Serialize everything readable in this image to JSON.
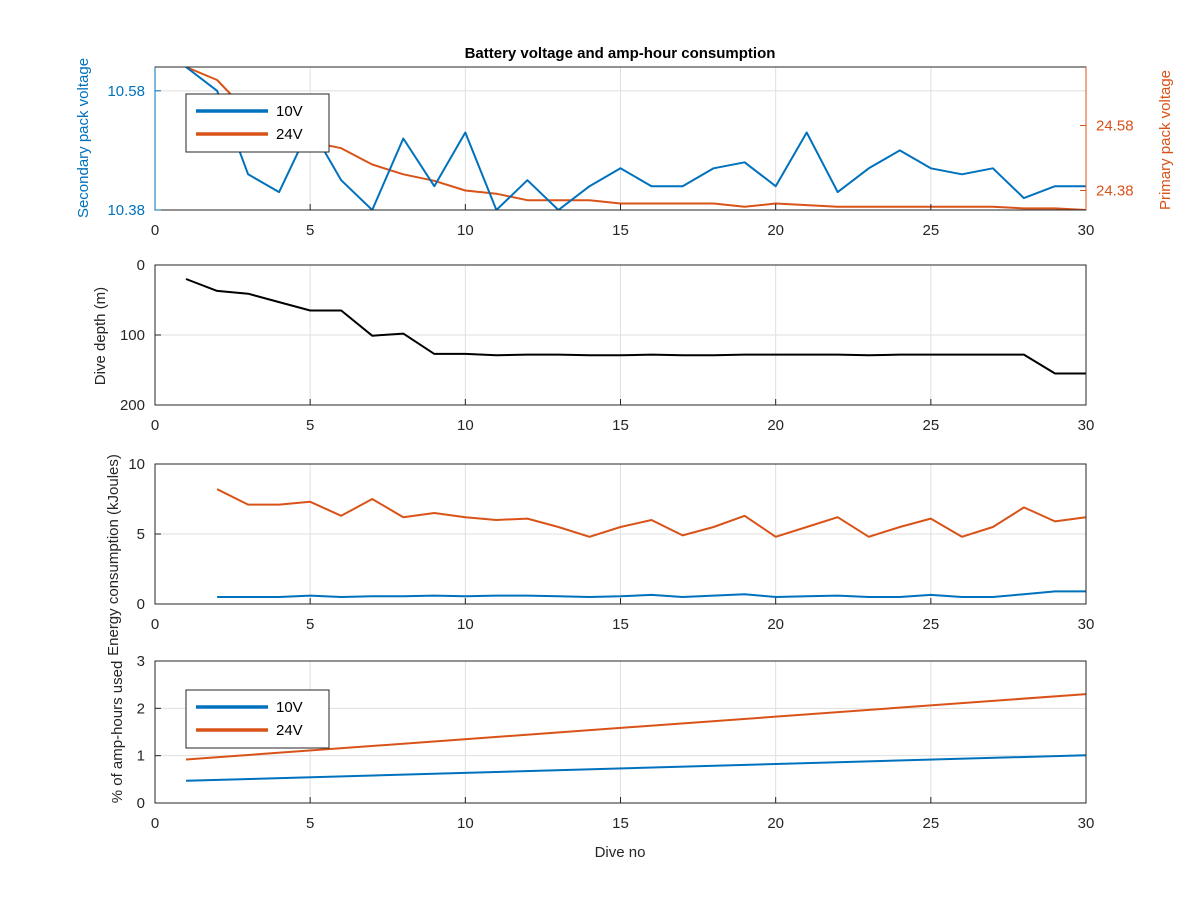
{
  "colors": {
    "blue": "#0072BD",
    "orange": "#D95319",
    "black": "#000000",
    "grid": "#DFDFDF",
    "axis": "#262626"
  },
  "chart_data": [
    {
      "id": "voltage",
      "type": "line",
      "title": "Battery voltage and amp-hour consumption",
      "xlim": [
        0,
        30
      ],
      "xticks": [
        0,
        5,
        10,
        15,
        20,
        25,
        30
      ],
      "grid": true,
      "legend": {
        "placement": "top-left",
        "entries": [
          "10V",
          "24V"
        ]
      },
      "left_axis": {
        "label": "Secondary pack voltage",
        "ylim": [
          10.38,
          10.62
        ],
        "ticks": [
          10.38,
          10.58
        ],
        "tick_labels": [
          "10.38",
          "10.58"
        ]
      },
      "right_axis": {
        "label": "Primary pack voltage",
        "ylim": [
          24.32,
          24.76
        ],
        "ticks": [
          24.38,
          24.58
        ],
        "tick_labels": [
          "24.38",
          "24.58"
        ]
      },
      "series": [
        {
          "name": "10V",
          "axis": "left",
          "x": [
            1,
            2,
            3,
            4,
            5,
            6,
            7,
            8,
            9,
            10,
            11,
            12,
            13,
            14,
            15,
            16,
            17,
            18,
            19,
            20,
            21,
            22,
            23,
            24,
            25,
            26,
            27,
            28,
            29,
            30
          ],
          "y": [
            10.62,
            10.58,
            10.44,
            10.41,
            10.52,
            10.43,
            10.38,
            10.5,
            10.42,
            10.51,
            10.38,
            10.43,
            10.38,
            10.42,
            10.45,
            10.42,
            10.42,
            10.45,
            10.46,
            10.42,
            10.51,
            10.41,
            10.45,
            10.48,
            10.45,
            10.44,
            10.45,
            10.4,
            10.42,
            10.42
          ]
        },
        {
          "name": "24V",
          "axis": "right",
          "x": [
            1,
            2,
            3,
            4,
            5,
            6,
            7,
            8,
            9,
            10,
            11,
            12,
            13,
            14,
            15,
            16,
            17,
            18,
            19,
            20,
            21,
            22,
            23,
            24,
            25,
            26,
            27,
            28,
            29,
            30
          ],
          "y": [
            24.76,
            24.72,
            24.62,
            24.56,
            24.53,
            24.51,
            24.46,
            24.43,
            24.41,
            24.38,
            24.37,
            24.35,
            24.35,
            24.35,
            24.34,
            24.34,
            24.34,
            24.34,
            24.33,
            24.34,
            24.335,
            24.33,
            24.33,
            24.33,
            24.33,
            24.33,
            24.33,
            24.325,
            24.325,
            24.32
          ]
        }
      ]
    },
    {
      "id": "depth",
      "type": "line",
      "ylabel": "Dive depth (m)",
      "xlim": [
        0,
        30
      ],
      "ylim": [
        0,
        200
      ],
      "y_reversed": true,
      "xticks": [
        0,
        5,
        10,
        15,
        20,
        25,
        30
      ],
      "yticks": [
        0,
        100,
        200
      ],
      "tick_labels_y": [
        "0",
        "100",
        "200"
      ],
      "grid": true,
      "series": [
        {
          "x": [
            1,
            2,
            3,
            4,
            5,
            6,
            7,
            8,
            9,
            10,
            11,
            12,
            13,
            14,
            15,
            16,
            17,
            18,
            19,
            20,
            21,
            22,
            23,
            24,
            25,
            26,
            27,
            28,
            29,
            30
          ],
          "y": [
            20,
            37,
            41,
            53,
            65,
            65,
            101,
            98,
            127,
            127,
            129,
            128,
            128,
            129,
            129,
            128,
            129,
            129,
            128,
            128,
            128,
            128,
            129,
            128,
            128,
            128,
            128,
            128,
            155,
            155
          ]
        }
      ]
    },
    {
      "id": "energy",
      "type": "line",
      "ylabel": "Energy consumption (kJoules)",
      "xlim": [
        0,
        30
      ],
      "ylim": [
        0,
        10
      ],
      "xticks": [
        0,
        5,
        10,
        15,
        20,
        25,
        30
      ],
      "yticks": [
        0,
        5,
        10
      ],
      "tick_labels_y": [
        "0",
        "5",
        "10"
      ],
      "grid": true,
      "series": [
        {
          "color_key": "blue",
          "x": [
            2,
            3,
            4,
            5,
            6,
            7,
            8,
            9,
            10,
            11,
            12,
            13,
            14,
            15,
            16,
            17,
            18,
            19,
            20,
            21,
            22,
            23,
            24,
            25,
            26,
            27,
            28,
            29,
            30
          ],
          "y": [
            0.5,
            0.5,
            0.5,
            0.6,
            0.5,
            0.55,
            0.55,
            0.6,
            0.55,
            0.6,
            0.6,
            0.55,
            0.5,
            0.55,
            0.65,
            0.5,
            0.6,
            0.7,
            0.5,
            0.55,
            0.6,
            0.5,
            0.5,
            0.65,
            0.5,
            0.5,
            0.7,
            0.9,
            0.9
          ]
        },
        {
          "color_key": "orange",
          "x": [
            2,
            3,
            4,
            5,
            6,
            7,
            8,
            9,
            10,
            11,
            12,
            13,
            14,
            15,
            16,
            17,
            18,
            19,
            20,
            21,
            22,
            23,
            24,
            25,
            26,
            27,
            28,
            29,
            30
          ],
          "y": [
            8.2,
            7.1,
            7.1,
            7.3,
            6.3,
            7.5,
            6.2,
            6.5,
            6.2,
            6.0,
            6.1,
            5.5,
            4.8,
            5.5,
            6.0,
            4.9,
            5.5,
            6.3,
            4.8,
            5.5,
            6.2,
            4.8,
            5.5,
            6.1,
            4.8,
            5.5,
            6.9,
            5.9,
            6.2
          ]
        }
      ]
    },
    {
      "id": "amphours",
      "type": "line",
      "ylabel": "% of amp-hours used",
      "xlabel": "Dive no",
      "xlim": [
        0,
        30
      ],
      "ylim": [
        0,
        3
      ],
      "xticks": [
        0,
        5,
        10,
        15,
        20,
        25,
        30
      ],
      "yticks": [
        0,
        1,
        2,
        3
      ],
      "tick_labels_y": [
        "0",
        "1",
        "2",
        "3"
      ],
      "grid": true,
      "legend": {
        "placement": "left",
        "entries": [
          "10V",
          "24V"
        ]
      },
      "series": [
        {
          "name": "10V",
          "x": [
            1,
            30
          ],
          "y": [
            0.47,
            1.01
          ]
        },
        {
          "name": "24V",
          "x": [
            1,
            30
          ],
          "y": [
            0.92,
            2.3
          ]
        }
      ]
    }
  ]
}
